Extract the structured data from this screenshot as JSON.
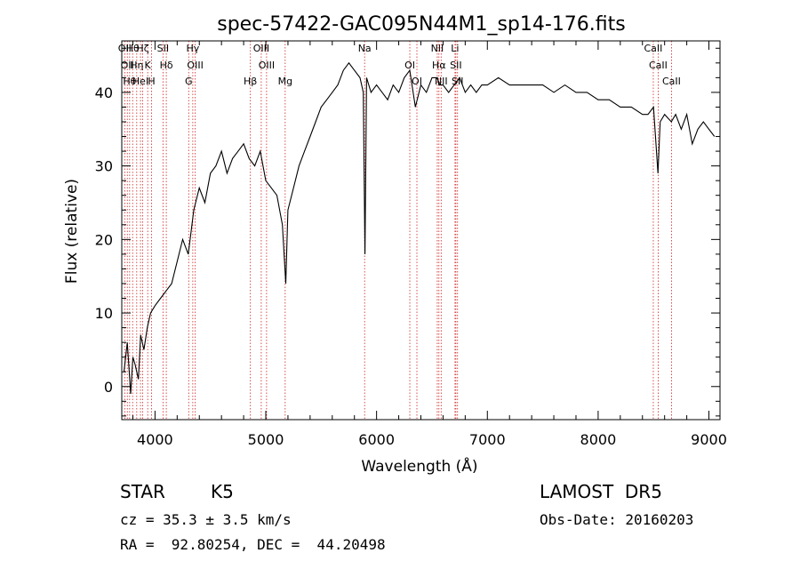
{
  "chart_data": {
    "type": "line",
    "title": "spec-57422-GAC095N44M1_sp14-176.fits",
    "xlabel": "Wavelength (Å)",
    "ylabel": "Flux (relative)",
    "xlim": [
      3700,
      9100
    ],
    "ylim": [
      -4.5,
      47
    ],
    "x_ticks": [
      4000,
      5000,
      6000,
      7000,
      8000,
      9000
    ],
    "y_ticks": [
      0,
      10,
      20,
      30,
      40
    ],
    "line_color": "#000000",
    "marker_color": "#cc2222",
    "series": [
      {
        "x": [
          3720,
          3750,
          3780,
          3800,
          3820,
          3850,
          3870,
          3900,
          3930,
          3960,
          4000,
          4050,
          4100,
          4150,
          4200,
          4250,
          4300,
          4350,
          4400,
          4450,
          4500,
          4550,
          4600,
          4650,
          4700,
          4750,
          4800,
          4850,
          4900,
          4950,
          5000,
          5050,
          5100,
          5150,
          5180,
          5200,
          5250,
          5300,
          5350,
          5400,
          5450,
          5500,
          5550,
          5600,
          5650,
          5700,
          5750,
          5800,
          5850,
          5880,
          5895,
          5910,
          5930,
          5950,
          6000,
          6050,
          6100,
          6150,
          6200,
          6250,
          6300,
          6350,
          6400,
          6450,
          6500,
          6550,
          6563,
          6600,
          6650,
          6700,
          6750,
          6800,
          6850,
          6900,
          6950,
          7000,
          7100,
          7200,
          7300,
          7400,
          7500,
          7600,
          7700,
          7800,
          7900,
          8000,
          8100,
          8200,
          8300,
          8400,
          8450,
          8500,
          8540,
          8560,
          8600,
          8660,
          8700,
          8750,
          8800,
          8850,
          8900,
          8950,
          9000,
          9050
        ],
        "y": [
          2,
          6,
          -1,
          4,
          3,
          1,
          7,
          5,
          8,
          10,
          11,
          12,
          13,
          14,
          17,
          20,
          18,
          24,
          27,
          25,
          29,
          30,
          32,
          29,
          31,
          32,
          33,
          31,
          30,
          32,
          28,
          27,
          26,
          22,
          14,
          24,
          27,
          30,
          32,
          34,
          36,
          38,
          39,
          40,
          41,
          43,
          44,
          43,
          42,
          40,
          18,
          42,
          41,
          40,
          41,
          40,
          39,
          41,
          40,
          42,
          43,
          38,
          41,
          40,
          42,
          42,
          41,
          41,
          40,
          41,
          42,
          40,
          41,
          40,
          41,
          41,
          42,
          41,
          41,
          41,
          41,
          40,
          41,
          40,
          40,
          39,
          39,
          38,
          38,
          37,
          37,
          38,
          29,
          36,
          37,
          36,
          37,
          35,
          37,
          33,
          35,
          36,
          35,
          34
        ]
      }
    ],
    "lines": [
      {
        "wavelength": 3727,
        "labels": [
          "OII"
        ]
      },
      {
        "wavelength": 3750,
        "labels": [
          "OII"
        ]
      },
      {
        "wavelength": 3771,
        "labels": [
          "Hθ"
        ]
      },
      {
        "wavelength": 3798,
        "labels": [
          "Hθ"
        ]
      },
      {
        "wavelength": 3835,
        "labels": [
          "Hη"
        ]
      },
      {
        "wavelength": 3869,
        "labels": [
          "HeI"
        ]
      },
      {
        "wavelength": 3889,
        "labels": [
          "Hζ"
        ]
      },
      {
        "wavelength": 3934,
        "labels": [
          "K"
        ]
      },
      {
        "wavelength": 3969,
        "labels": [
          "H"
        ]
      },
      {
        "wavelength": 4072,
        "labels": [
          "SII"
        ]
      },
      {
        "wavelength": 4102,
        "labels": [
          "Hδ"
        ]
      },
      {
        "wavelength": 4304,
        "labels": [
          "G"
        ]
      },
      {
        "wavelength": 4341,
        "labels": [
          "Hγ"
        ]
      },
      {
        "wavelength": 4363,
        "labels": [
          "OIII"
        ]
      },
      {
        "wavelength": 4861,
        "labels": [
          "Hβ"
        ]
      },
      {
        "wavelength": 4959,
        "labels": [
          "OIII"
        ]
      },
      {
        "wavelength": 5007,
        "labels": [
          "OIII"
        ]
      },
      {
        "wavelength": 5175,
        "labels": [
          "Mg"
        ]
      },
      {
        "wavelength": 5892,
        "labels": [
          "Na"
        ]
      },
      {
        "wavelength": 6300,
        "labels": [
          "OI"
        ]
      },
      {
        "wavelength": 6364,
        "labels": [
          "OI"
        ]
      },
      {
        "wavelength": 6548,
        "labels": [
          "NII"
        ]
      },
      {
        "wavelength": 6563,
        "labels": [
          "Hα"
        ]
      },
      {
        "wavelength": 6583,
        "labels": [
          "NII"
        ]
      },
      {
        "wavelength": 6708,
        "labels": [
          "Li"
        ]
      },
      {
        "wavelength": 6716,
        "labels": [
          "SII"
        ]
      },
      {
        "wavelength": 6731,
        "labels": [
          "SII"
        ]
      },
      {
        "wavelength": 8498,
        "labels": [
          "CaII"
        ]
      },
      {
        "wavelength": 8542,
        "labels": [
          "CaII"
        ]
      },
      {
        "wavelength": 8662,
        "labels": [
          "CaII"
        ]
      }
    ]
  },
  "footer": {
    "class_label": "STAR",
    "subclass": "K5",
    "survey": "LAMOST  DR5",
    "cz": "cz = 35.3 ± 3.5 km/s",
    "obs_date": "Obs-Date: 20160203",
    "radec": "RA =  92.80254, DEC =  44.20498"
  }
}
